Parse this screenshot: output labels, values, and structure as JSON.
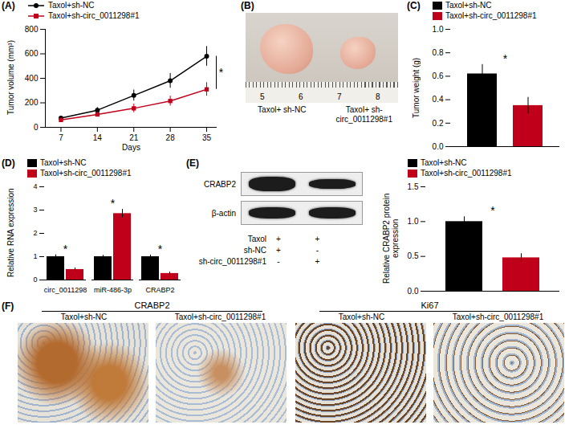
{
  "chart_data": [
    {
      "panel": "(A)",
      "type": "line",
      "x": [
        7,
        14,
        21,
        28,
        35
      ],
      "xlabel": "Days",
      "ylabel": "Tumor volume (mm³)",
      "xlim": [
        4,
        37
      ],
      "xticks": [
        7,
        14,
        21,
        28,
        35
      ],
      "ylim": [
        0,
        800
      ],
      "yticks": [
        0,
        200,
        400,
        600,
        800
      ],
      "grid": false,
      "legend": "top-left",
      "annotation": "*",
      "series": [
        {
          "name": "Taxol+sh-NC",
          "color": "#000000",
          "marker": "circle",
          "line_style": "solid",
          "values": [
            75,
            140,
            260,
            380,
            580
          ],
          "errors": [
            15,
            22,
            45,
            60,
            80
          ]
        },
        {
          "name": "Taxol+sh-circ_0011298#1",
          "color": "#c0001a",
          "marker": "square",
          "line_style": "solid",
          "values": [
            60,
            105,
            155,
            215,
            310
          ],
          "errors": [
            10,
            20,
            35,
            40,
            55
          ]
        }
      ]
    },
    {
      "panel": "(C)",
      "type": "bar",
      "ylabel": "Tumor weight (g)",
      "categories": [
        "Taxol+sh-NC",
        "Taxol+sh-circ_0011298#1"
      ],
      "values": [
        0.62,
        0.35
      ],
      "errors": [
        0.08,
        0.07
      ],
      "colors": [
        "#000000",
        "#c0001a"
      ],
      "ylim": [
        0,
        1.0
      ],
      "yticks": [
        {
          "value": 0,
          "label": "0.0"
        },
        0.2,
        0.4,
        0.6,
        0.8,
        {
          "value": 1.0,
          "label": "1.0"
        }
      ],
      "grid": false,
      "legend": "top",
      "tick_labels": "y",
      "annotation": "*"
    },
    {
      "panel": "(D)",
      "type": "bar",
      "ylabel": "Relative RNA expression",
      "categories": [
        "circ_0011298",
        "miR-486-3p",
        "CRABP2"
      ],
      "ylim": [
        0,
        4
      ],
      "yticks": [
        0,
        1,
        2,
        3,
        4
      ],
      "grid": false,
      "legend": "top",
      "annotation": "*",
      "series": [
        {
          "name": "Taxol+sh-NC",
          "color": "#000000",
          "values": [
            1.0,
            1.0,
            1.0
          ],
          "errors": [
            0.08,
            0.06,
            0.07
          ]
        },
        {
          "name": "Taxol+sh-circ_0011298#1",
          "color": "#c0001a",
          "values": [
            0.45,
            2.85,
            0.28
          ],
          "errors": [
            0.07,
            0.18,
            0.06
          ]
        }
      ]
    },
    {
      "type": "bar",
      "ylabel": "Relative CRABP2 protein expression",
      "categories": [
        "Taxol+sh-NC",
        "Taxol+sh-circ_0011298#1"
      ],
      "values": [
        1.0,
        0.48
      ],
      "errors": [
        0.07,
        0.06
      ],
      "colors": [
        "#000000",
        "#c0001a"
      ],
      "ylim": [
        0,
        1.5
      ],
      "yticks": [
        {
          "value": 0,
          "label": "0.0"
        },
        0.5,
        {
          "value": 1.0,
          "label": "1.0"
        },
        1.5
      ],
      "grid": false,
      "legend": "top",
      "tick_labels": "y",
      "annotation": "*"
    }
  ],
  "images": {
    "B": {
      "panel": "(B)",
      "labels": [
        "Taxol+ sh-NC",
        "Taxol+ sh-circ_0011298#1"
      ],
      "ruler": [
        "5",
        "6",
        "7",
        "8"
      ]
    },
    "E": {
      "panel": "(E)",
      "proteins": [
        "CRABP2",
        "β-actin"
      ],
      "conditions": [
        {
          "name": "Taxol",
          "marks": [
            "+",
            "+"
          ]
        },
        {
          "name": "sh-NC",
          "marks": [
            "+",
            "-"
          ]
        },
        {
          "name": "sh-circ_0011298#1",
          "marks": [
            "-",
            "+"
          ]
        }
      ]
    },
    "F": {
      "panel": "(F)",
      "groups": [
        {
          "title": "CRABP2",
          "labels": [
            "Taxol+sh-NC",
            "Taxol+sh-circ_0011298#1"
          ]
        },
        {
          "title": "Ki67",
          "labels": [
            "Taxol+sh-NC",
            "Taxol+sh-circ_0011298#1"
          ]
        }
      ]
    }
  }
}
